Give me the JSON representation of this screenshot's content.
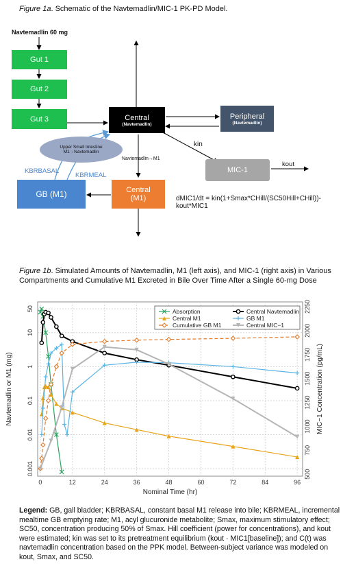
{
  "fig1a": {
    "caption_label": "Figure 1a",
    "caption_text": ". Schematic of the Navtemadlin/MIC-1 PK-PD Model.",
    "dose_label": "Navtemadlin 60 mg",
    "boxes": {
      "gut1": "Gut 1",
      "gut2": "Gut 2",
      "gut3": "Gut 3",
      "central": "Central",
      "central_sub": "(Navtemadlin)",
      "peripheral": "Peripheral",
      "peripheral_sub": "(Navtemadlin)",
      "mic1": "MIC-1",
      "gbm1": "GB (M1)",
      "centralm1": "Central",
      "centralm1_sub": "(M1)",
      "intestine": "Upper Small Intestine M1→Navtemadlin"
    },
    "labels": {
      "conversion": "Navtemadlin→M1",
      "kin": "kin",
      "kout": "kout",
      "kbr_basal": "KBRBASAL",
      "kbr_meal": "KBRMEAL",
      "equation": "dMIC1/dt = kin(1+Smax*CHill/(SC50Hill+CHill))-kout*MIC1"
    },
    "colors": {
      "gut": "#1fbf4f",
      "central": "#000000",
      "peripheral": "#44546a",
      "mic1": "#a6a6a6",
      "gb": "#4a86cf",
      "centralm1": "#ed7d31",
      "intestine": "#9aa8c6"
    }
  },
  "fig1b": {
    "caption_label": "Figure 1b",
    "caption_text": ".  Simulated Amounts of Navtemadlin, M1 (left axis), and MIC-1 (right axis) in Various Compartments and Cumulative M1 Excreted in Bile Over Time After a Single 60-mg Dose"
  },
  "chart_data": {
    "type": "line",
    "xlabel": "Nominal Time (hr)",
    "ylabel": "Navtemadlin or M1 (mg)",
    "y2label": "MIC−1 Concentration (pg/mL)",
    "xticks": [
      "0",
      "12",
      "24",
      "36",
      "48",
      "60",
      "72",
      "84",
      "96"
    ],
    "yticks": [
      "0.001",
      "0.01",
      "0.1",
      "1",
      "10",
      "50"
    ],
    "y2ticks": [
      "500",
      "750",
      "1000",
      "1250",
      "1500",
      "1750",
      "2000",
      "2250"
    ],
    "xlim": [
      -1,
      98
    ],
    "ylim_log": [
      0.0006,
      80
    ],
    "y2lim": [
      480,
      2300
    ],
    "yscale": "log",
    "grid": true,
    "legend_position": "top-right",
    "series": [
      {
        "name": "Absorption",
        "color": "#2ca25f",
        "marker": "x",
        "dash": "",
        "x": [
          0,
          0.5,
          1,
          2,
          3,
          4,
          6,
          8
        ],
        "y": [
          40,
          50,
          30,
          10,
          2,
          0.3,
          0.01,
          0.0008
        ]
      },
      {
        "name": "Central Navtemadlin",
        "color": "#000000",
        "marker": "circle-open",
        "dash": "",
        "width": 2,
        "x": [
          0.5,
          1,
          1.5,
          2,
          3,
          4,
          6,
          8,
          12,
          24,
          36,
          48,
          72,
          96
        ],
        "y": [
          5,
          20,
          35,
          40,
          38,
          28,
          15,
          8,
          5.5,
          2.5,
          1.6,
          1.1,
          0.5,
          0.23
        ]
      },
      {
        "name": "Central M1",
        "color": "#e8a317",
        "marker": "triangle",
        "dash": "",
        "x": [
          0.5,
          1,
          1.5,
          2,
          3,
          4,
          6,
          8,
          12,
          24,
          36,
          48,
          72,
          96
        ],
        "y": [
          0.04,
          0.12,
          0.25,
          0.27,
          0.25,
          0.15,
          0.08,
          0.06,
          0.045,
          0.022,
          0.014,
          0.009,
          0.0045,
          0.0022
        ]
      },
      {
        "name": "GB M1",
        "color": "#5ab4e6",
        "marker": "plus",
        "dash": "",
        "x": [
          0.5,
          1,
          2,
          3,
          4,
          6,
          8,
          9,
          10,
          12,
          24,
          36,
          48,
          72,
          96
        ],
        "y": [
          0.01,
          0.06,
          0.5,
          1.2,
          2.5,
          3.5,
          4.5,
          0.02,
          0.01,
          0.18,
          1.1,
          1.35,
          1.3,
          1.0,
          0.65
        ]
      },
      {
        "name": "Cumulative GB M1",
        "color": "#e07b2a",
        "marker": "diamond-open",
        "dash": "5,3",
        "x": [
          0,
          0.5,
          1,
          2,
          3,
          4,
          6,
          8,
          12,
          24,
          36,
          48,
          72,
          96
        ],
        "y": [
          0.001,
          0.002,
          0.005,
          0.03,
          0.1,
          0.3,
          1.0,
          2.5,
          4.5,
          5.5,
          6.0,
          6.3,
          6.8,
          7.5
        ]
      },
      {
        "name": "Central MIC−1",
        "color": "#b5b5b5",
        "marker": "triangle-down",
        "dash": "",
        "width": 2,
        "axis": "right",
        "x": [
          0,
          4,
          8,
          12,
          24,
          36,
          48,
          72,
          96
        ],
        "y": [
          560,
          850,
          1200,
          1600,
          1830,
          1800,
          1650,
          1290,
          890
        ]
      }
    ]
  },
  "legend_text": {
    "label": "Legend:",
    "text": " GB, gall bladder; KBRBASAL, constant basal M1 release into bile; KBRMEAL, incremental mealtime GB emptying rate; M1, acyl glucuronide metabolite; Smax, maximum stimulatory effect; SC50, concentration producing 50% of Smax. Hill coefficient (power for concentrations), and kout were estimated; kin was set to its pretreatment equilibrium (kout · MIC1[baseline]); and C(t) was navtemadlin concentration based on the PPK model. Between-subject variance was modeled on kout, Smax, and SC50."
  }
}
